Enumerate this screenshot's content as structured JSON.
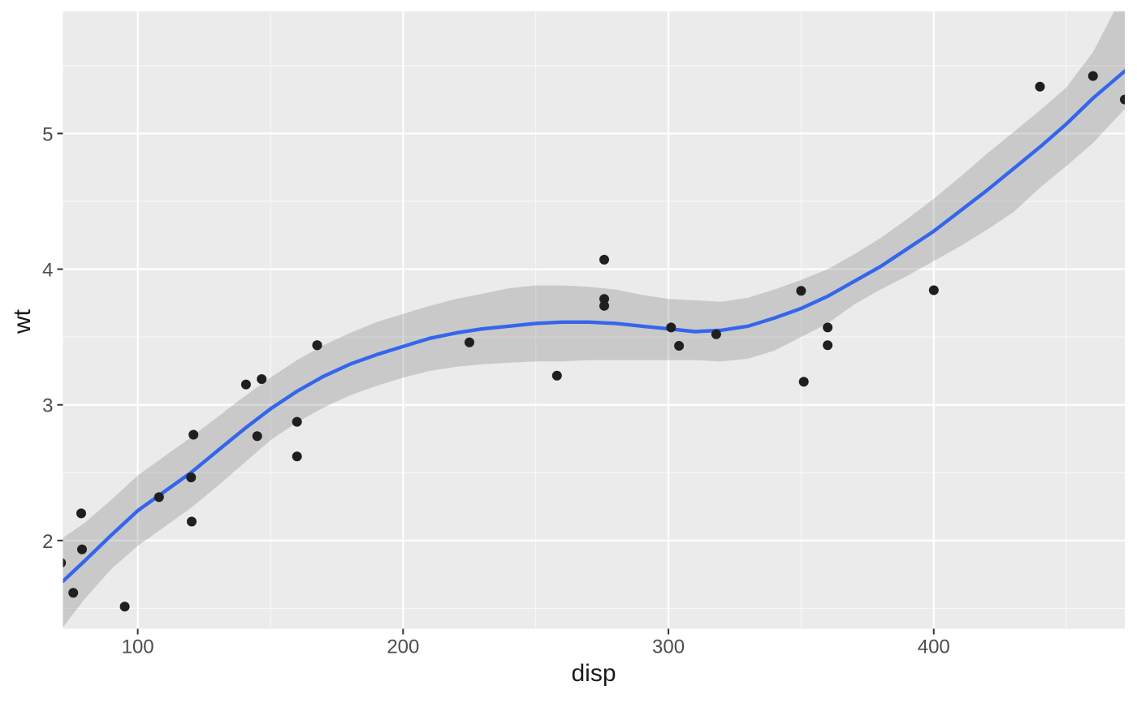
{
  "chart_data": {
    "type": "scatter",
    "title": "",
    "xlabel": "disp",
    "ylabel": "wt",
    "xlim": [
      71.8,
      472.0
    ],
    "ylim": [
      1.35,
      5.9
    ],
    "x_ticks": [
      100,
      200,
      300,
      400
    ],
    "x_tick_labels": [
      "100",
      "200",
      "300",
      "400"
    ],
    "x_minor_ticks": [
      150,
      250,
      350,
      450
    ],
    "y_ticks": [
      2,
      3,
      4,
      5
    ],
    "y_tick_labels": [
      "2",
      "3",
      "4",
      "5"
    ],
    "y_minor_ticks": [
      1.5,
      2.5,
      3.5,
      4.5,
      5.5
    ],
    "grid": "on",
    "legend": "none",
    "points": [
      [
        160,
        2.62
      ],
      [
        160,
        2.875
      ],
      [
        108,
        2.32
      ],
      [
        258,
        3.215
      ],
      [
        360,
        3.44
      ],
      [
        225,
        3.46
      ],
      [
        360,
        3.57
      ],
      [
        146.7,
        3.19
      ],
      [
        140.8,
        3.15
      ],
      [
        167.6,
        3.44
      ],
      [
        167.6,
        3.44
      ],
      [
        275.8,
        4.07
      ],
      [
        275.8,
        3.73
      ],
      [
        275.8,
        3.78
      ],
      [
        472,
        5.25
      ],
      [
        460,
        5.424
      ],
      [
        440,
        5.345
      ],
      [
        78.7,
        2.2
      ],
      [
        75.7,
        1.615
      ],
      [
        71.1,
        1.835
      ],
      [
        120.1,
        2.465
      ],
      [
        318,
        3.52
      ],
      [
        304,
        3.435
      ],
      [
        350,
        3.84
      ],
      [
        400,
        3.845
      ],
      [
        79,
        1.935
      ],
      [
        120.3,
        2.14
      ],
      [
        95.1,
        1.513
      ],
      [
        351,
        3.17
      ],
      [
        145,
        2.77
      ],
      [
        301,
        3.57
      ],
      [
        121,
        2.78
      ]
    ],
    "smooth": {
      "method": "loess",
      "x": [
        71.8,
        80,
        90,
        100,
        110,
        120,
        130,
        140,
        150,
        160,
        170,
        180,
        190,
        200,
        210,
        220,
        230,
        240,
        250,
        260,
        270,
        280,
        290,
        300,
        310,
        320,
        330,
        340,
        350,
        360,
        370,
        380,
        390,
        400,
        410,
        420,
        430,
        440,
        450,
        460,
        472
      ],
      "fit": [
        1.7,
        1.85,
        2.04,
        2.22,
        2.36,
        2.5,
        2.66,
        2.82,
        2.97,
        3.1,
        3.21,
        3.3,
        3.37,
        3.43,
        3.49,
        3.53,
        3.56,
        3.58,
        3.6,
        3.61,
        3.61,
        3.6,
        3.58,
        3.56,
        3.54,
        3.55,
        3.58,
        3.64,
        3.71,
        3.8,
        3.91,
        4.02,
        4.15,
        4.28,
        4.43,
        4.58,
        4.74,
        4.9,
        5.07,
        5.26,
        5.46
      ],
      "lower": [
        1.36,
        1.57,
        1.79,
        1.96,
        2.1,
        2.24,
        2.4,
        2.57,
        2.74,
        2.87,
        2.98,
        3.07,
        3.14,
        3.2,
        3.25,
        3.28,
        3.3,
        3.31,
        3.32,
        3.32,
        3.33,
        3.33,
        3.33,
        3.33,
        3.33,
        3.32,
        3.34,
        3.4,
        3.5,
        3.6,
        3.74,
        3.85,
        3.95,
        4.06,
        4.17,
        4.29,
        4.42,
        4.6,
        4.76,
        4.93,
        5.18
      ],
      "upper": [
        2.02,
        2.13,
        2.3,
        2.48,
        2.62,
        2.76,
        2.91,
        3.06,
        3.2,
        3.33,
        3.44,
        3.53,
        3.61,
        3.67,
        3.73,
        3.78,
        3.82,
        3.86,
        3.88,
        3.88,
        3.87,
        3.85,
        3.81,
        3.78,
        3.77,
        3.76,
        3.79,
        3.85,
        3.92,
        4.0,
        4.11,
        4.23,
        4.37,
        4.52,
        4.68,
        4.85,
        5.01,
        5.17,
        5.34,
        5.6,
        6.05
      ]
    },
    "colors": {
      "figure_background": "#FFFFFF",
      "panel_background": "#EBEBEB",
      "grid_major": "#FFFFFF",
      "grid_minor": "#FFFFFF",
      "point": "#1F1F1F",
      "smooth_line": "#3366EC",
      "ribbon": "#696969",
      "tick_mark": "#333333",
      "tick_label": "#4D4D4D",
      "axis_title": "#1A1A1A"
    }
  }
}
